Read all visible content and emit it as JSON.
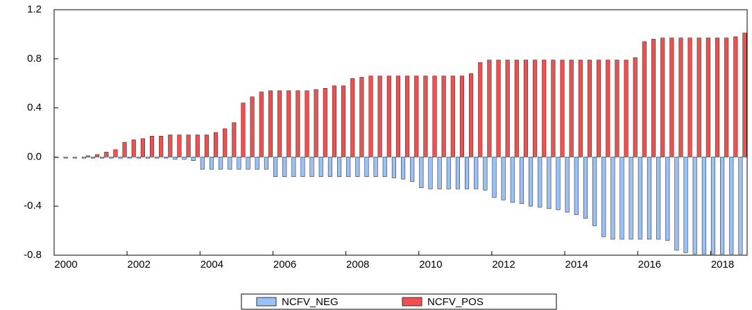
{
  "chart_data": {
    "type": "bar",
    "categories": [
      "2000",
      null,
      null,
      null,
      null,
      null,
      null,
      null,
      "2002",
      null,
      null,
      null,
      null,
      null,
      null,
      null,
      "2004",
      null,
      null,
      null,
      null,
      null,
      null,
      null,
      "2006",
      null,
      null,
      null,
      null,
      null,
      null,
      null,
      "2008",
      null,
      null,
      null,
      null,
      null,
      null,
      null,
      "2010",
      null,
      null,
      null,
      null,
      null,
      null,
      null,
      "2012",
      null,
      null,
      null,
      null,
      null,
      null,
      null,
      "2014",
      null,
      null,
      null,
      null,
      null,
      null,
      null,
      "2016",
      null,
      null,
      null,
      null,
      null,
      null,
      null,
      "2018",
      null,
      null,
      null
    ],
    "series": [
      {
        "name": "NCFV_NEG",
        "color": "#9bc2f7",
        "values": [
          -0.005,
          -0.01,
          -0.01,
          -0.01,
          -0.01,
          -0.01,
          -0.01,
          -0.01,
          -0.01,
          -0.01,
          -0.01,
          -0.01,
          -0.01,
          -0.02,
          -0.02,
          -0.03,
          -0.1,
          -0.1,
          -0.1,
          -0.1,
          -0.1,
          -0.1,
          -0.1,
          -0.1,
          -0.16,
          -0.16,
          -0.16,
          -0.16,
          -0.16,
          -0.16,
          -0.16,
          -0.16,
          -0.16,
          -0.16,
          -0.16,
          -0.16,
          -0.16,
          -0.17,
          -0.18,
          -0.2,
          -0.25,
          -0.26,
          -0.26,
          -0.26,
          -0.26,
          -0.26,
          -0.26,
          -0.27,
          -0.33,
          -0.35,
          -0.37,
          -0.38,
          -0.4,
          -0.41,
          -0.42,
          -0.43,
          -0.45,
          -0.47,
          -0.5,
          -0.56,
          -0.65,
          -0.67,
          -0.67,
          -0.67,
          -0.67,
          -0.67,
          -0.67,
          -0.68,
          -0.76,
          -0.78,
          -0.79,
          -0.79,
          -0.79,
          -0.79,
          -0.79,
          -0.79
        ]
      },
      {
        "name": "NCFV_POS",
        "color": "#f05050",
        "values": [
          0,
          0,
          0,
          0.01,
          0.02,
          0.04,
          0.06,
          0.12,
          0.14,
          0.15,
          0.17,
          0.17,
          0.18,
          0.18,
          0.18,
          0.18,
          0.18,
          0.2,
          0.23,
          0.28,
          0.44,
          0.49,
          0.53,
          0.54,
          0.54,
          0.54,
          0.54,
          0.54,
          0.55,
          0.56,
          0.58,
          0.58,
          0.64,
          0.65,
          0.66,
          0.66,
          0.66,
          0.66,
          0.66,
          0.66,
          0.66,
          0.66,
          0.66,
          0.66,
          0.66,
          0.68,
          0.77,
          0.79,
          0.79,
          0.79,
          0.79,
          0.79,
          0.79,
          0.79,
          0.79,
          0.79,
          0.79,
          0.79,
          0.79,
          0.79,
          0.79,
          0.79,
          0.79,
          0.81,
          0.94,
          0.96,
          0.97,
          0.97,
          0.97,
          0.97,
          0.97,
          0.97,
          0.97,
          0.97,
          0.98,
          1.01
        ]
      }
    ],
    "ylim": [
      -0.8,
      1.2
    ],
    "yticks": [
      {
        "value": -0.8,
        "label": "-0.8"
      },
      {
        "value": -0.4,
        "label": "-0.4"
      },
      {
        "value": 0,
        "label": "0.0"
      },
      {
        "value": 0.4,
        "label": "0.4"
      },
      {
        "value": 0.8,
        "label": "0.8"
      },
      {
        "value": 1.2,
        "label": "1.2"
      }
    ],
    "grid": false,
    "legend": "bottom"
  }
}
